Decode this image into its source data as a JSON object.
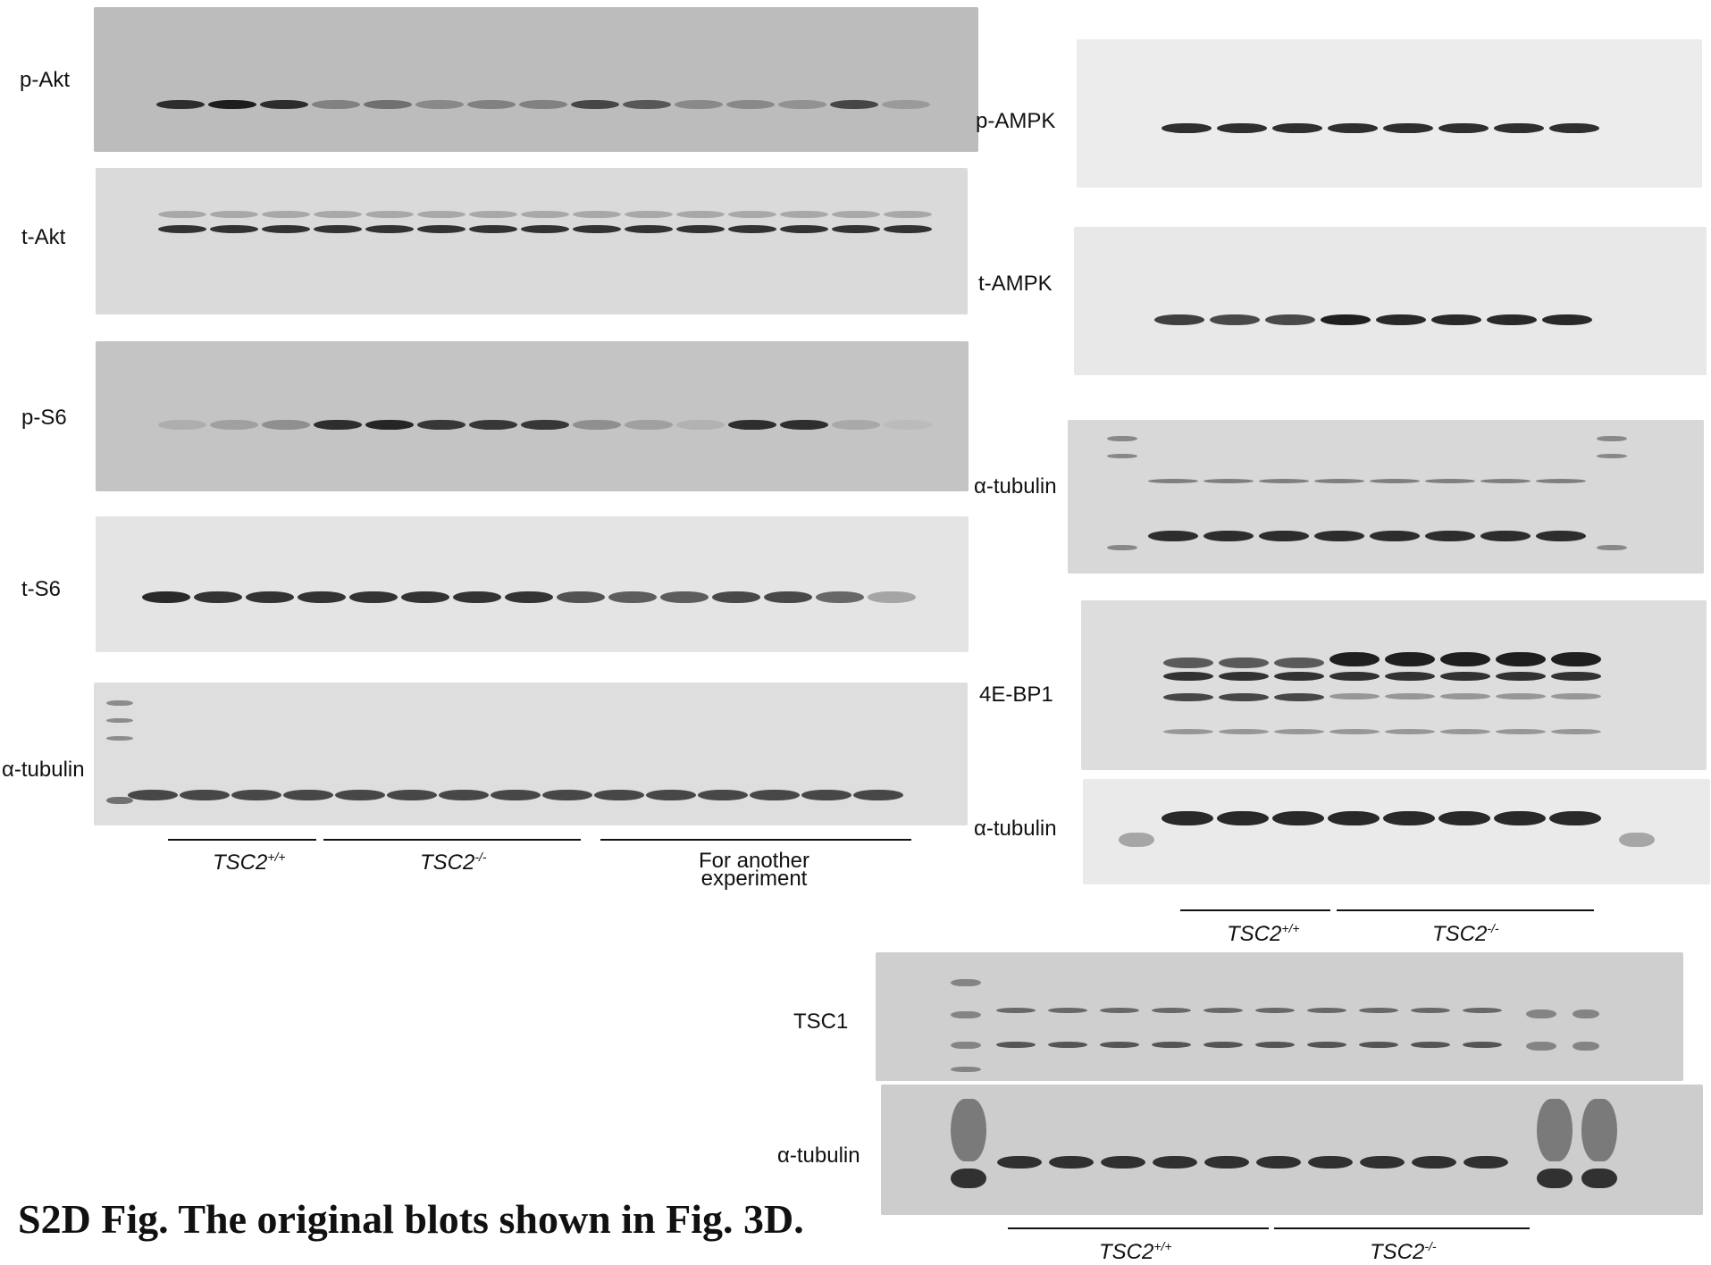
{
  "caption": "S2D Fig. The original blots shown in Fig. 3D.",
  "panels": {
    "left": {
      "labels": [
        "p-Akt",
        "t-Akt",
        "p-S6",
        "t-S6",
        "α-tubulin"
      ],
      "groups": [
        {
          "base": "TSC2",
          "sup": "+/+"
        },
        {
          "base": "TSC2",
          "sup": "-/-"
        }
      ],
      "other_group": [
        "For another",
        "experiment"
      ]
    },
    "right": {
      "labels": [
        "p-AMPK",
        "t-AMPK",
        "α-tubulin",
        "4E-BP1",
        "α-tubulin"
      ],
      "groups": [
        {
          "base": "TSC2",
          "sup": "+/+"
        },
        {
          "base": "TSC2",
          "sup": "-/-"
        }
      ]
    },
    "bottom": {
      "labels": [
        "TSC1",
        "α-tubulin"
      ],
      "groups": [
        {
          "base": "TSC2",
          "sup": "+/+"
        },
        {
          "base": "TSC2",
          "sup": "-/-"
        }
      ]
    }
  }
}
